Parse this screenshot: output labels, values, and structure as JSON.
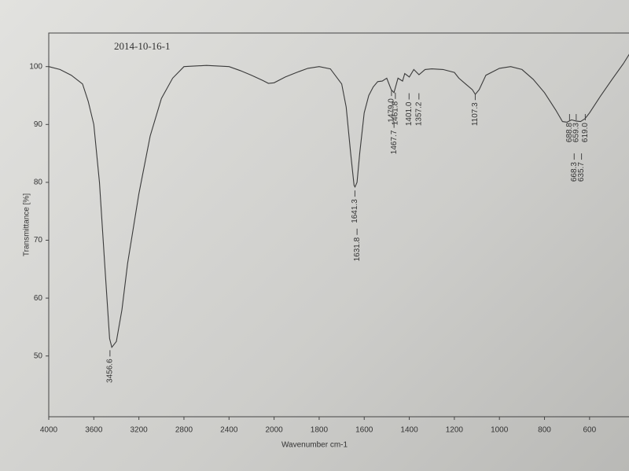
{
  "chart_data": {
    "type": "line",
    "title": "2014-10-16-1",
    "xlabel": "Wavenumber cm-1",
    "ylabel": "Transmittance [%]",
    "x": [
      4000,
      3900,
      3800,
      3700,
      3650,
      3600,
      3550,
      3500,
      3460,
      3440,
      3400,
      3350,
      3300,
      3200,
      3100,
      3000,
      2900,
      2800,
      2600,
      2400,
      2300,
      2200,
      2100,
      2050,
      2000,
      1950,
      1900,
      1850,
      1800,
      1750,
      1700,
      1680,
      1660,
      1645,
      1641,
      1632,
      1620,
      1600,
      1580,
      1560,
      1540,
      1520,
      1500,
      1480,
      1468,
      1450,
      1430,
      1420,
      1400,
      1380,
      1357,
      1330,
      1300,
      1250,
      1200,
      1180,
      1150,
      1120,
      1107,
      1090,
      1060,
      1000,
      950,
      900,
      850,
      800,
      750,
      720,
      700,
      680,
      660,
      640,
      620,
      600,
      550,
      500,
      450,
      418
    ],
    "values": [
      100,
      99.5,
      98.5,
      97,
      94,
      90,
      80,
      65,
      53,
      51.5,
      52.5,
      58,
      66,
      78,
      88,
      94.5,
      98,
      100,
      100.2,
      100,
      99.3,
      98.5,
      97.6,
      97.1,
      97.2,
      98.2,
      99,
      99.7,
      100,
      99.6,
      97,
      93,
      85,
      79.5,
      79.2,
      80,
      85,
      92,
      95,
      96.5,
      97.4,
      97.5,
      98,
      96,
      95.5,
      98,
      97.5,
      98.8,
      98.2,
      99.5,
      98.6,
      99.5,
      99.6,
      99.5,
      99,
      98,
      97,
      96,
      95.2,
      96,
      98.5,
      99.7,
      100,
      99.5,
      97.8,
      95.5,
      92.5,
      90.5,
      90.4,
      90.8,
      90.6,
      90.5,
      91,
      92,
      95,
      97.8,
      100.5,
      102.5
    ],
    "color": "#3a3a3a",
    "xlim": [
      4000,
      418
    ],
    "xticks": [
      4000,
      3600,
      3200,
      2800,
      2400,
      2000,
      1800,
      1600,
      1400,
      1200,
      1000,
      800,
      600
    ],
    "ylim": [
      39.5,
      105.8
    ],
    "yticks": [
      50,
      60,
      70,
      80,
      90,
      100
    ],
    "annotations": [
      {
        "text": "3456.6",
        "x": 3456.6,
        "y": 51
      },
      {
        "text": "1641.3",
        "x": 1641.3,
        "y": 78.6
      },
      {
        "text": "1631.8",
        "x": 1631.8,
        "y": 72
      },
      {
        "text": "1479.0",
        "x": 1479.0,
        "y": 96
      },
      {
        "text": "1461.8",
        "x": 1461.8,
        "y": 95.5
      },
      {
        "text": "1467.7",
        "x": 1467.7,
        "y": 90.5
      },
      {
        "text": "1401.0",
        "x": 1401.0,
        "y": 95.4
      },
      {
        "text": "1357.2",
        "x": 1357.2,
        "y": 95.4
      },
      {
        "text": "1107.3",
        "x": 1107.3,
        "y": 95.3
      },
      {
        "text": "688.8",
        "x": 688.8,
        "y": 91.8
      },
      {
        "text": "659.3",
        "x": 659.3,
        "y": 91.8
      },
      {
        "text": "619.0",
        "x": 619.0,
        "y": 91.8
      },
      {
        "text": "668.3",
        "x": 668.3,
        "y": 85
      },
      {
        "text": "635.7",
        "x": 635.7,
        "y": 85
      }
    ]
  }
}
